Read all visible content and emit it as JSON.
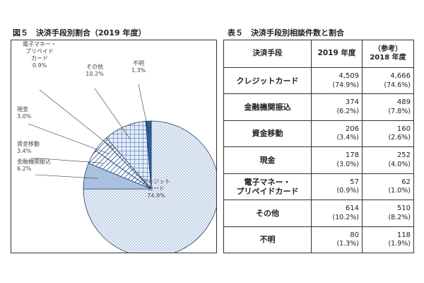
{
  "figure": {
    "title": "図５　決済手段別割合（2019 年度）"
  },
  "table": {
    "title": "表５　決済手段別相談件数と割合",
    "headers": {
      "method": "決済手段",
      "y2019": "2019 年度",
      "ref_note": "（参考）",
      "y2018": "2018 年度"
    },
    "rows": [
      {
        "label": [
          "クレジットカード"
        ],
        "v2019": "4,509",
        "p2019": "(74.9%)",
        "v2018": "4,666",
        "p2018": "(74.6%)"
      },
      {
        "label": [
          "金融機関振込"
        ],
        "v2019": "374",
        "p2019": "(6.2%)",
        "v2018": "489",
        "p2018": "(7.8%)"
      },
      {
        "label": [
          "資金移動"
        ],
        "v2019": "206",
        "p2019": "(3.4%)",
        "v2018": "160",
        "p2018": "(2.6%)"
      },
      {
        "label": [
          "現金"
        ],
        "v2019": "178",
        "p2019": "(3.0%)",
        "v2018": "252",
        "p2018": "(4.0%)"
      },
      {
        "label": [
          "電子マネー・",
          "プリペイドカード"
        ],
        "v2019": "57",
        "p2019": "(0.9%)",
        "v2018": "62",
        "p2018": "(1.0%)"
      },
      {
        "label": [
          "その他"
        ],
        "v2019": "614",
        "p2019": "(10.2%)",
        "v2018": "510",
        "p2018": "(8.2%)"
      },
      {
        "label": [
          "不明"
        ],
        "v2019": "80",
        "p2019": "(1.3%)",
        "v2018": "118",
        "p2018": "(1.9%)"
      }
    ]
  },
  "chart_data": {
    "type": "pie",
    "title": "図５　決済手段別割合（2019 年度）",
    "start": "12 o'clock",
    "direction": "clockwise",
    "slices": [
      {
        "label": [
          "クレジット",
          "カード"
        ],
        "value_label": "74.9%",
        "value": 74.9,
        "pattern": "dots",
        "color": "#dfe9f5"
      },
      {
        "label": [
          "金融機関振込"
        ],
        "value_label": "6.2%",
        "value": 6.2,
        "pattern": "solid",
        "color": "#a9c1e0"
      },
      {
        "label": [
          "資金移動"
        ],
        "value_label": "3.4%",
        "value": 3.4,
        "pattern": "stripes",
        "color": "#ffffff"
      },
      {
        "label": [
          "現金"
        ],
        "value_label": "3.0%",
        "value": 3.0,
        "pattern": "stripes",
        "color": "#ffffff"
      },
      {
        "label": [
          "電子マネー・",
          "プリペイド",
          "カード"
        ],
        "value_label": "0.9%",
        "value": 0.9,
        "pattern": "stripes",
        "color": "#ffffff"
      },
      {
        "label": [
          "その他"
        ],
        "value_label": "10.2%",
        "value": 10.2,
        "pattern": "grid",
        "color": "#dce7f6"
      },
      {
        "label": [
          "不明"
        ],
        "value_label": "1.3%",
        "value": 1.3,
        "pattern": "solid",
        "color": "#2e5fa3"
      }
    ]
  }
}
